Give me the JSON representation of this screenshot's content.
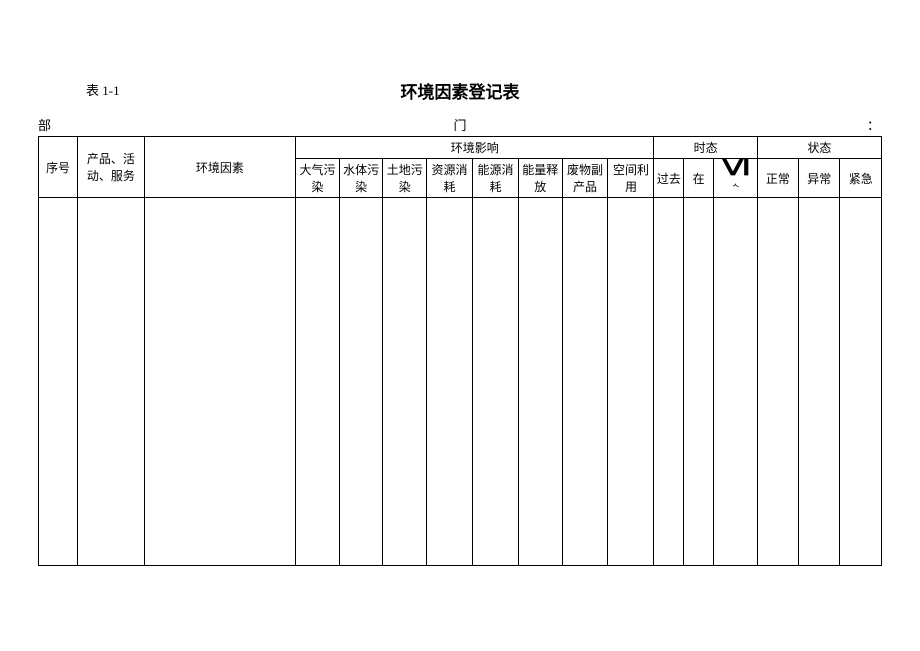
{
  "table_number": "表 1-1",
  "title": "环境因素登记表",
  "department": {
    "left": "部",
    "mid": "门",
    "right": "："
  },
  "headers": {
    "seq": "序号",
    "product_activity": "产品、活动、服务",
    "env_factor": "环境因素",
    "env_impact_group": "环境影响",
    "impact": {
      "air": "大气污染",
      "water": "水体污染",
      "land": "土地污染",
      "resource": "资源消耗",
      "energy": "能源消耗",
      "release": "能量释放",
      "waste": "废物副产品",
      "space": "空间利用"
    },
    "time_group": "时态",
    "time": {
      "past": "过去",
      "present_top": "在",
      "present_glyph": "Ⅵ",
      "present_sub": "ᄾ",
      "future": ""
    },
    "state_group": "状态",
    "state": {
      "normal": "正常",
      "abnormal": "异常",
      "emergency": "紧急"
    }
  },
  "body_rows": 1,
  "colors": {
    "border": "#000000",
    "text": "#000000",
    "background": "#ffffff"
  }
}
